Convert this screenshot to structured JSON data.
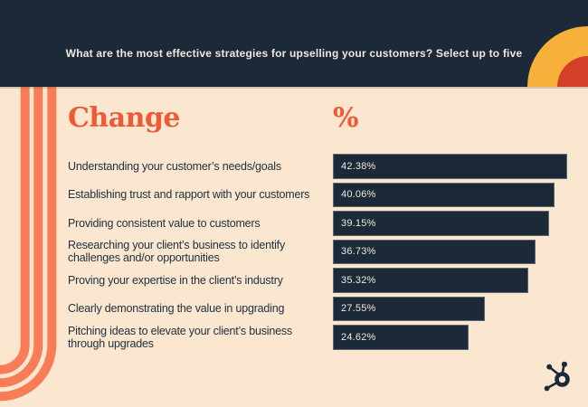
{
  "header": {
    "title": "What are the most effective strategies for upselling your customers? Select up to five"
  },
  "section": {
    "change_heading": "Change",
    "percent_heading": "%"
  },
  "chart_data": {
    "type": "bar",
    "orientation": "horizontal",
    "title": "What are the most effective strategies for upselling your customers? Select up to five",
    "categories": [
      "Understanding your customer’s needs/goals",
      "Establishing trust and rapport with your customers",
      "Providing consistent value to customers",
      "Researching your client’s business to identify challenges and/or opportunities",
      "Proving your expertise in the client’s industry",
      "Clearly demonstrating the value in upgrading",
      "Pitching ideas to elevate your client’s business through upgrades"
    ],
    "values": [
      42.38,
      40.06,
      39.15,
      36.73,
      35.32,
      27.55,
      24.62
    ],
    "value_labels": [
      "42.38%",
      "40.06%",
      "39.15%",
      "36.73%",
      "35.32%",
      "27.55%",
      "24.62%"
    ],
    "xlim": [
      0,
      42.38
    ],
    "grid": false,
    "legend": false,
    "bar_color": "#1b2938",
    "value_label_position": "inside-left"
  },
  "branding": {
    "logo_icon": "hubspot-sprocket-icon"
  },
  "colors": {
    "background": "#fbe7d0",
    "header_bg": "#1b2938",
    "header_text": "#f2e9dc",
    "accent_orange": "#ee5a35",
    "stripe_coral": "#f87c55",
    "arc_yellow": "#f8b03d",
    "arc_red": "#d2402a",
    "bar_navy": "#1b2938",
    "label_navy": "#22303f"
  }
}
